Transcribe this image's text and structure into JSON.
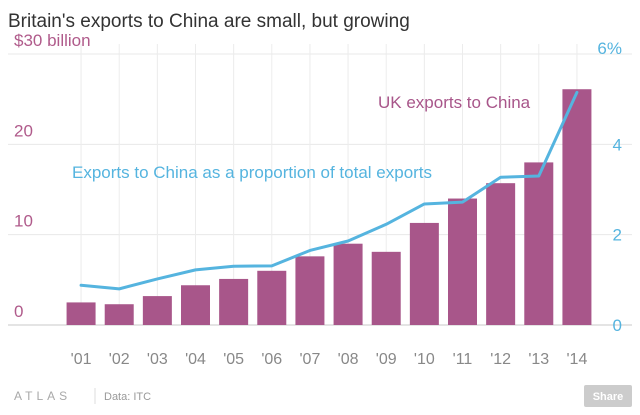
{
  "chart_data": {
    "type": "bar",
    "title": "Britain's exports to China are small, but growing",
    "categories": [
      "'01",
      "'02",
      "'03",
      "'04",
      "'05",
      "'06",
      "'07",
      "'08",
      "'09",
      "'10",
      "'11",
      "'12",
      "'13",
      "'14"
    ],
    "series": [
      {
        "name": "UK exports to China",
        "type": "bar",
        "axis": "left",
        "color": "#a8568a",
        "values": [
          2.5,
          2.3,
          3.2,
          4.4,
          5.1,
          6.0,
          7.6,
          9.0,
          8.1,
          11.3,
          14.0,
          15.7,
          18.0,
          26.1
        ]
      },
      {
        "name": "Exports to China as a proportion of total exports",
        "type": "line",
        "axis": "right",
        "color": "#55b4df",
        "values": [
          0.88,
          0.8,
          1.02,
          1.22,
          1.3,
          1.31,
          1.65,
          1.86,
          2.23,
          2.68,
          2.72,
          3.27,
          3.3,
          5.15
        ]
      }
    ],
    "y_left": {
      "ylim": [
        0,
        30
      ],
      "ticks": [
        "0",
        "10",
        "20",
        "$30 billion"
      ],
      "tick_values": [
        0,
        10,
        20,
        30
      ]
    },
    "y_right": {
      "ylim": [
        0,
        6
      ],
      "ticks": [
        "0",
        "2",
        "4",
        "6%"
      ],
      "tick_values": [
        0,
        2,
        4,
        6
      ]
    },
    "grid": true
  },
  "footer": {
    "brand": "ATLAS",
    "source": "Data: ITC",
    "share_label": "Share"
  }
}
